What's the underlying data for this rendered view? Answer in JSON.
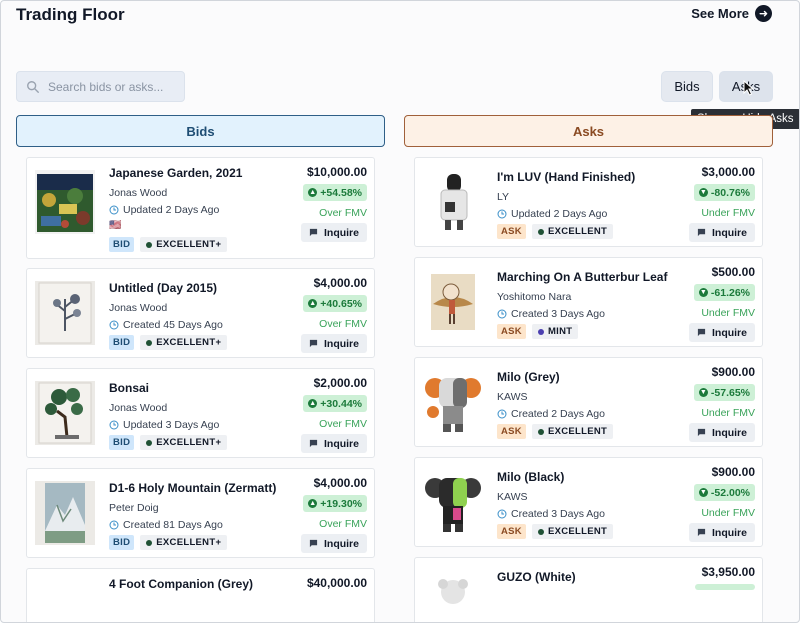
{
  "header": {
    "title": "Trading Floor",
    "see_more": "See More"
  },
  "search": {
    "placeholder": "Search bids or asks..."
  },
  "toggles": {
    "bids": "Bids",
    "asks": "Asks",
    "tooltip": "Show or Hide Asks"
  },
  "columns": {
    "bids": "Bids",
    "asks": "Asks"
  },
  "bids": [
    {
      "name": "Japanese Garden, 2021",
      "artist": "Jonas Wood",
      "date": "Updated 2 Days Ago",
      "flag": "🇺🇸",
      "type": "BID",
      "condition": "EXCELLENT+",
      "price": "$10,000.00",
      "change": "+54.58%",
      "fmv": "Over FMV",
      "inquire": "Inquire"
    },
    {
      "name": "Untitled (Day 2015)",
      "artist": "Jonas Wood",
      "date": "Created 45 Days Ago",
      "type": "BID",
      "condition": "EXCELLENT+",
      "price": "$4,000.00",
      "change": "+40.65%",
      "fmv": "Over FMV",
      "inquire": "Inquire"
    },
    {
      "name": "Bonsai",
      "artist": "Jonas Wood",
      "date": "Updated 3 Days Ago",
      "type": "BID",
      "condition": "EXCELLENT+",
      "price": "$2,000.00",
      "change": "+30.44%",
      "fmv": "Over FMV",
      "inquire": "Inquire"
    },
    {
      "name": "D1-6 Holy Mountain (Zermatt)",
      "artist": "Peter Doig",
      "date": "Created 81 Days Ago",
      "type": "BID",
      "condition": "EXCELLENT+",
      "price": "$4,000.00",
      "change": "+19.30%",
      "fmv": "Over FMV",
      "inquire": "Inquire"
    },
    {
      "name": "4 Foot Companion (Grey)",
      "price": "$40,000.00"
    }
  ],
  "asks": [
    {
      "name": "I'm LUV (Hand Finished)",
      "artist": "LY",
      "date": "Updated 2 Days Ago",
      "type": "ASK",
      "condition": "EXCELLENT",
      "price": "$3,000.00",
      "change": "-80.76%",
      "fmv": "Under FMV",
      "inquire": "Inquire"
    },
    {
      "name": "Marching On A Butterbur Leaf",
      "artist": "Yoshitomo Nara",
      "date": "Created 3 Days Ago",
      "type": "ASK",
      "condition": "MINT",
      "price": "$500.00",
      "change": "-61.26%",
      "fmv": "Under FMV",
      "inquire": "Inquire"
    },
    {
      "name": "Milo (Grey)",
      "artist": "KAWS",
      "date": "Created 2 Days Ago",
      "type": "ASK",
      "condition": "EXCELLENT",
      "price": "$900.00",
      "change": "-57.65%",
      "fmv": "Under FMV",
      "inquire": "Inquire"
    },
    {
      "name": "Milo (Black)",
      "artist": "KAWS",
      "date": "Created 3 Days Ago",
      "type": "ASK",
      "condition": "EXCELLENT",
      "price": "$900.00",
      "change": "-52.00%",
      "fmv": "Under FMV",
      "inquire": "Inquire"
    },
    {
      "name": "GUZO (White)",
      "price": "$3,950.00"
    }
  ],
  "colors": {
    "bid_accent": "#1e4d73",
    "ask_accent": "#8a4a22",
    "positive": "#1c7a3b",
    "condition_excellent": "#1f5135",
    "condition_mint": "#4b3fb0"
  },
  "icons": [
    "search-icon",
    "arrow-right-icon",
    "clock-icon",
    "message-icon",
    "arrow-up-icon",
    "arrow-down-icon",
    "cursor-icon"
  ]
}
